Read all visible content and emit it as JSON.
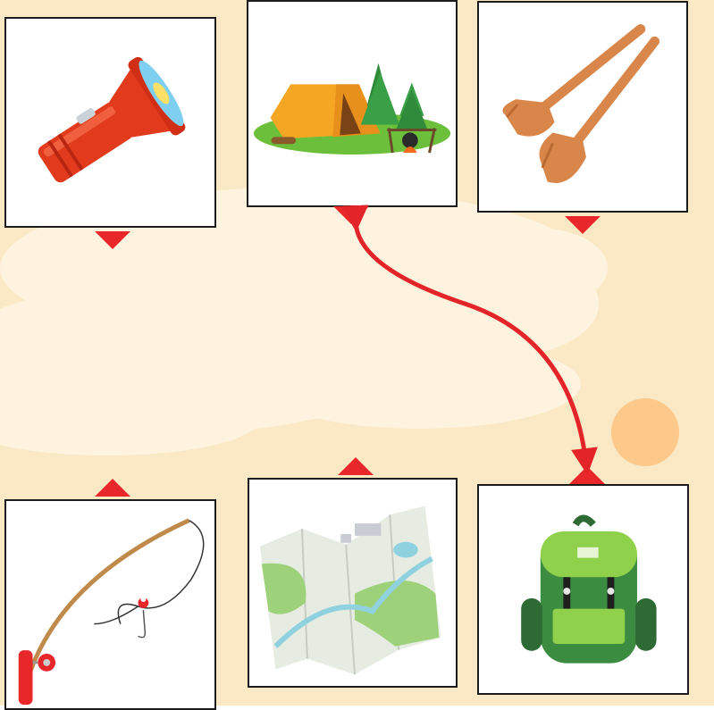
{
  "colors": {
    "background": "#fbe9c6",
    "cloud": "#fdf3de",
    "sun": "#fcc98a",
    "card_border": "#1c1c1c",
    "pointer": "#e8272b",
    "connector": "#e32529"
  },
  "puzzle": {
    "type": "match-the-pictures",
    "cards": [
      {
        "id": "flashlight",
        "icon": "flashlight-icon",
        "row": "top",
        "slot": 1
      },
      {
        "id": "camping-tent",
        "icon": "tent-campsite-icon",
        "row": "top",
        "slot": 2
      },
      {
        "id": "wooden-paddles",
        "icon": "paddles-icon",
        "row": "top",
        "slot": 3
      },
      {
        "id": "fishing-rod",
        "icon": "fishing-rod-icon",
        "row": "bottom",
        "slot": 1
      },
      {
        "id": "map",
        "icon": "folded-map-icon",
        "row": "bottom",
        "slot": 2
      },
      {
        "id": "backpack",
        "icon": "backpack-icon",
        "row": "bottom",
        "slot": 3
      }
    ],
    "connections": [
      {
        "from": "camping-tent",
        "to": "backpack"
      }
    ]
  }
}
